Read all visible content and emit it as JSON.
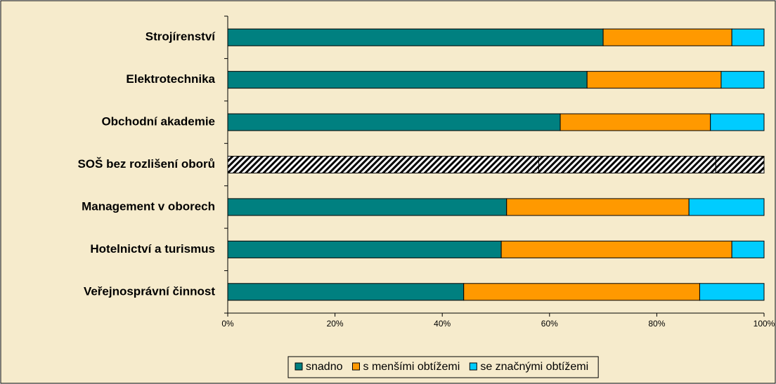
{
  "chart_data": {
    "type": "stacked_barh",
    "categories": [
      "Strojírenství",
      "Elektrotechnika",
      "Obchodní akademie",
      "SOŠ bez rozlišení oborů",
      "Management v oborech",
      "Hotelnictví a turismus",
      "Veřejnosprávní činnost"
    ],
    "series": [
      {
        "name": "snadno",
        "color": "#008080",
        "values": [
          70,
          67,
          62,
          58,
          52,
          51,
          44
        ]
      },
      {
        "name": "s menšími obtížemi",
        "color": "#ff9900",
        "values": [
          24,
          25,
          28,
          33,
          34,
          43,
          44
        ]
      },
      {
        "name": "se značnými obtížemi",
        "color": "#00ccff",
        "values": [
          6,
          8,
          10,
          9,
          14,
          6,
          12
        ]
      }
    ],
    "hatched": [
      false,
      false,
      false,
      true,
      false,
      false,
      false
    ],
    "xlim": [
      0,
      100
    ],
    "xticks": [
      {
        "value": 0,
        "label": "0%"
      },
      {
        "value": 20,
        "label": "20%"
      },
      {
        "value": 40,
        "label": "40%"
      },
      {
        "value": 60,
        "label": "60%"
      },
      {
        "value": 80,
        "label": "80%"
      },
      {
        "value": 100,
        "label": "100%"
      }
    ],
    "legend": "bottom"
  }
}
